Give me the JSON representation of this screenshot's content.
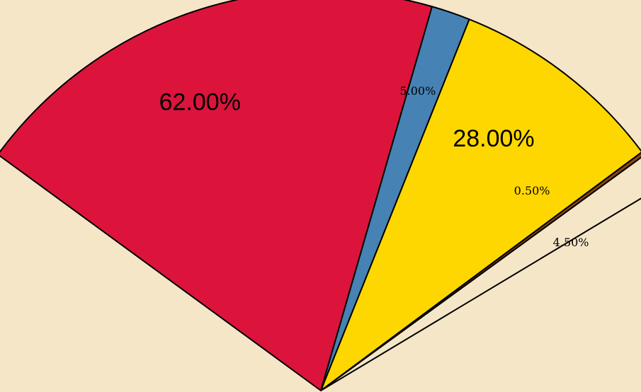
{
  "chart_data": {
    "type": "pie",
    "title": "",
    "slices": [
      {
        "label": "62.00%",
        "value": 62.0,
        "color": "#DC143C"
      },
      {
        "label": "5.00%",
        "value": 5.0,
        "color": "#4682B4"
      },
      {
        "label": "28.00%",
        "value": 28.0,
        "color": "#FFD700"
      },
      {
        "label": "0.50%",
        "value": 0.5,
        "color": "#8B4513"
      },
      {
        "label": "4.50%",
        "value": 4.5,
        "color": "#F5E6C8"
      }
    ]
  },
  "colors": {
    "background": "#F5E6C8",
    "stroke": "#000000"
  }
}
